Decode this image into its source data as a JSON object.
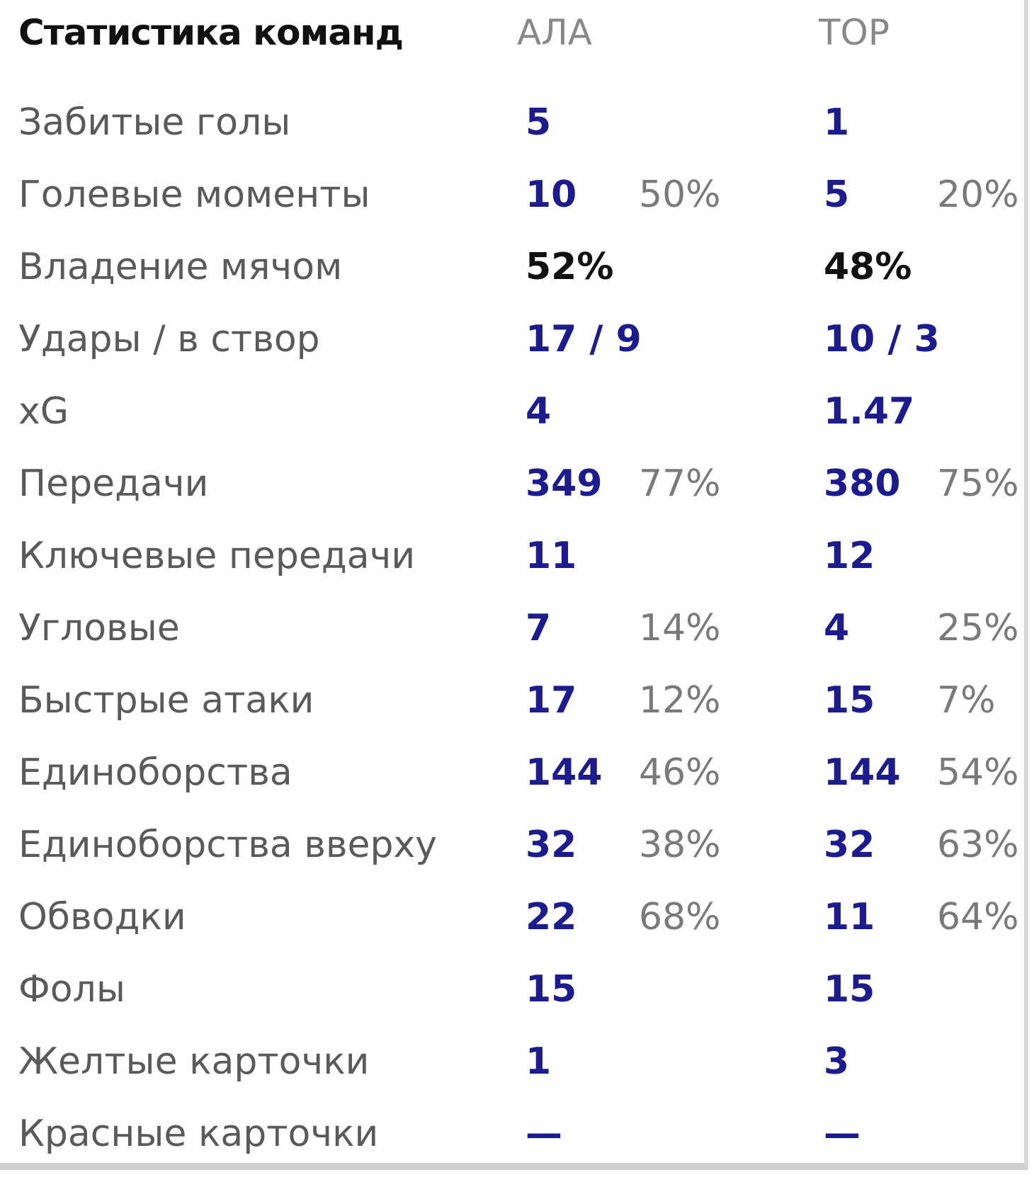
{
  "header": {
    "title": "Статистика команд",
    "team1": "АЛА",
    "team2": "ТОР"
  },
  "table": {
    "rows": [
      {
        "label": "Забитые голы",
        "team1": "5",
        "team2": "1"
      },
      {
        "label": "Голевые моменты",
        "team1": "10",
        "team1_pct": "50%",
        "team2": "5",
        "team2_pct": "20%"
      },
      {
        "label": "Владение мячом",
        "team1": "52%",
        "team2": "48%"
      },
      {
        "label": "Удары / в створ",
        "team1": "17 / 9",
        "team2": "10 / 3"
      },
      {
        "label": "xG",
        "team1": "4",
        "team2": "1.47"
      },
      {
        "label": "Передачи",
        "team1": "349",
        "team1_pct": "77%",
        "team2": "380",
        "team2_pct": "75%"
      },
      {
        "label": "Ключевые передачи",
        "team1": "11",
        "team2": "12"
      },
      {
        "label": "Угловые",
        "team1": "7",
        "team1_pct": "14%",
        "team2": "4",
        "team2_pct": "25%"
      },
      {
        "label": "Быстрые атаки",
        "team1": "17",
        "team1_pct": "12%",
        "team2": "15",
        "team2_pct": "7%"
      },
      {
        "label": "Единоборства",
        "team1": "144",
        "team1_pct": "46%",
        "team2": "144",
        "team2_pct": "54%"
      },
      {
        "label": "Единоборства вверху",
        "team1": "32",
        "team1_pct": "38%",
        "team2": "32",
        "team2_pct": "63%"
      },
      {
        "label": "Обводки",
        "team1": "22",
        "team1_pct": "68%",
        "team2": "11",
        "team2_pct": "64%"
      },
      {
        "label": "Фолы",
        "team1": "15",
        "team2": "15"
      },
      {
        "label": "Желтые карточки",
        "team1": "1",
        "team2": "3"
      },
      {
        "label": "Красные карточки",
        "team1": "—",
        "team2": "—"
      }
    ]
  }
}
